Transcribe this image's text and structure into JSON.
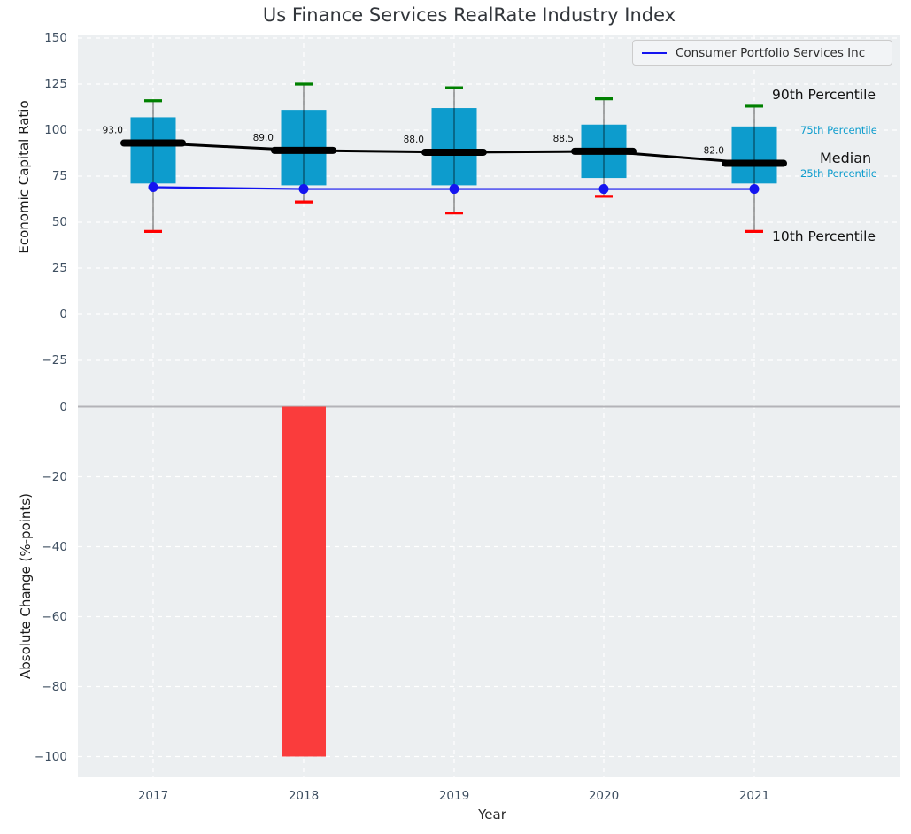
{
  "colors": {
    "plot_background": "#eceff1",
    "grid": "#ffffff",
    "box_fill": "#0d9ccd",
    "p90_cap": "#008000",
    "p10_cap": "#ff0000",
    "whisker": "#808080",
    "median_line": "#000000",
    "company_line": "#1414f0",
    "bar_negative": "#fa3c3c",
    "zero_line": "#b3b3b8",
    "tick_label": "#3d4e60",
    "accent_cyan": "#0d9ccd",
    "annotation_text": "#111111"
  },
  "chart_data": [
    {
      "type": "boxplot",
      "title": "Us Finance Services RealRate Industry Index",
      "xlabel": "Year",
      "ylabel": "Economic Capital Ratio",
      "x": [
        2017,
        2018,
        2019,
        2020,
        2021
      ],
      "yticks": [
        150,
        125,
        100,
        75,
        50,
        25,
        0,
        -25
      ],
      "ylim": [
        -46,
        152
      ],
      "grid": true,
      "legend": {
        "position": "upper right",
        "label": "Consumer Portfolio Services Inc"
      },
      "percentiles": {
        "p90": [
          116,
          125,
          123,
          117,
          113
        ],
        "p75": [
          107,
          111,
          112,
          103,
          102
        ],
        "median": [
          93.0,
          89.0,
          88.0,
          88.5,
          82.0
        ],
        "p25": [
          71,
          70,
          70,
          74,
          71
        ],
        "p10": [
          45,
          61,
          55,
          64,
          45
        ]
      },
      "median_labels": [
        "93.0",
        "89.0",
        "88.0",
        "88.5",
        "82.0"
      ],
      "company_series": {
        "name": "Consumer Portfolio Services Inc",
        "values": [
          69,
          68,
          68,
          68,
          68
        ]
      },
      "right_labels": {
        "p90": "90th Percentile",
        "p75": "75th Percentile",
        "median": "Median",
        "p25": "25th Percentile",
        "p10": "10th Percentile"
      }
    },
    {
      "type": "bar",
      "xlabel": "Year",
      "ylabel": "Absolute Change (%-points)",
      "x": [
        2017,
        2018,
        2019,
        2020,
        2021
      ],
      "values": [
        0,
        -100,
        0,
        0,
        0
      ],
      "yticks": [
        0,
        -20,
        -40,
        -60,
        -80,
        -100
      ],
      "ylim": [
        -105,
        4
      ],
      "grid": true
    }
  ]
}
